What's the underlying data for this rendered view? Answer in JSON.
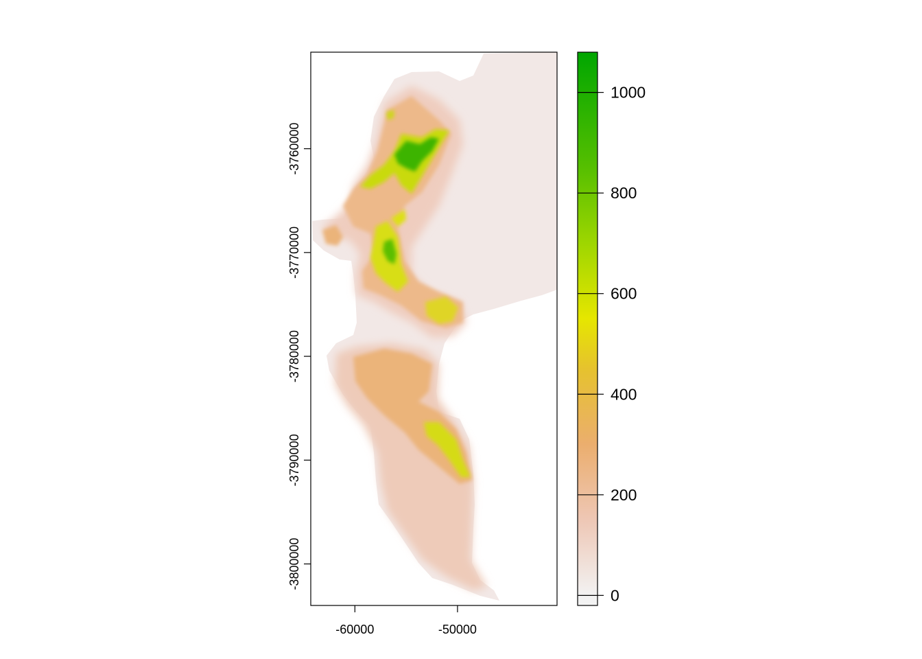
{
  "chart_data": {
    "type": "heatmap",
    "title": "",
    "xlabel": "",
    "ylabel": "",
    "xlim": [
      -64300,
      -40300
    ],
    "ylim": [
      -3804000,
      -3750700
    ],
    "x_ticks": [
      {
        "value": -60000,
        "label": "-60000"
      },
      {
        "value": -50000,
        "label": "-50000"
      }
    ],
    "y_ticks": [
      {
        "value": -3760000,
        "label": "-3760000"
      },
      {
        "value": -3770000,
        "label": "-3770000"
      },
      {
        "value": -3780000,
        "label": "-3780000"
      },
      {
        "value": -3790000,
        "label": "-3790000"
      },
      {
        "value": -3800000,
        "label": "-3800000"
      }
    ],
    "legend": {
      "placement": "right",
      "range": [
        -20,
        1080
      ],
      "ticks": [
        {
          "value": 0,
          "label": "0"
        },
        {
          "value": 200,
          "label": "200"
        },
        {
          "value": 400,
          "label": "400"
        },
        {
          "value": 600,
          "label": "600"
        },
        {
          "value": 800,
          "label": "800"
        },
        {
          "value": 1000,
          "label": "1000"
        }
      ],
      "colors": [
        {
          "value": 0,
          "color": "#F2F2F2"
        },
        {
          "value": 150,
          "color": "#EEC7B5"
        },
        {
          "value": 300,
          "color": "#EBAE6E"
        },
        {
          "value": 450,
          "color": "#E6C22E"
        },
        {
          "value": 550,
          "color": "#E6E600"
        },
        {
          "value": 700,
          "color": "#9ED600"
        },
        {
          "value": 850,
          "color": "#56BF00"
        },
        {
          "value": 1080,
          "color": "#00A600"
        }
      ]
    },
    "grid": false
  }
}
